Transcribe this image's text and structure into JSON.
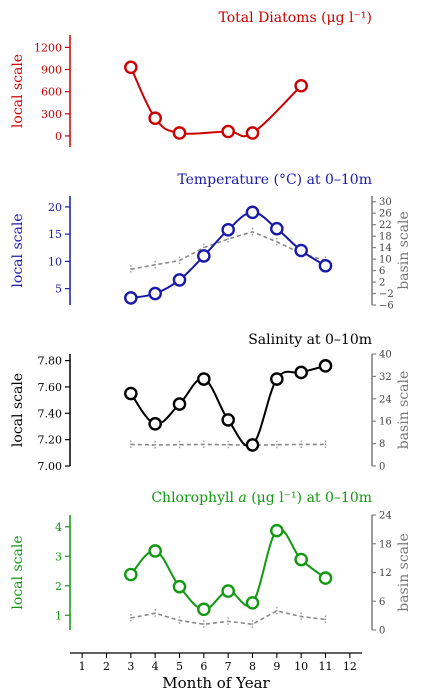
{
  "figure": {
    "xlabel": "Month of Year"
  },
  "shared_x": {
    "ticks": [
      1,
      2,
      3,
      4,
      5,
      6,
      7,
      8,
      9,
      10,
      11,
      12
    ],
    "xlim": [
      0.5,
      12.5
    ]
  },
  "chart_data": [
    {
      "type": "line",
      "title": "Total Diatoms (μg l⁻¹)",
      "ylabel": "local scale",
      "color": "#cc0000",
      "ylim": [
        -150,
        1300
      ],
      "yticks": [
        0,
        300,
        600,
        900,
        1200
      ],
      "ytick_labels": [
        "0",
        "300",
        "600",
        "900",
        "1200"
      ],
      "series": [
        {
          "x": [
            3,
            4,
            5,
            7,
            8,
            10
          ],
          "y": [
            930,
            240,
            40,
            60,
            40,
            680
          ]
        }
      ]
    },
    {
      "type": "line",
      "title": "Temperature (°C) at 0–10m",
      "ylabel": "local scale",
      "ylabel_right": "basin scale",
      "color": "#1a1aaa",
      "ylim": [
        2,
        22
      ],
      "yticks": [
        5,
        10,
        15,
        20
      ],
      "ytick_labels": [
        "5",
        "10",
        "15",
        "20"
      ],
      "ylim_right": [
        -6,
        32
      ],
      "yticks_right": [
        -6,
        -2,
        2,
        6,
        10,
        14,
        18,
        22,
        26,
        30
      ],
      "ytick_labels_right": [
        "−6",
        "−2",
        "2",
        "6",
        "10",
        "14",
        "18",
        "22",
        "26",
        "30"
      ],
      "series": [
        {
          "x": [
            3,
            4,
            5,
            6,
            7,
            8,
            9,
            10,
            11
          ],
          "y": [
            3.3,
            4.1,
            6.6,
            11.0,
            15.8,
            19.0,
            16.0,
            12.0,
            9.2
          ]
        }
      ],
      "basin_series": {
        "x": [
          3,
          4,
          5,
          6,
          7,
          8,
          9,
          10,
          11
        ],
        "y": [
          6.5,
          8.0,
          9.5,
          14.0,
          17.0,
          19.5,
          16.0,
          12.0,
          9.5
        ]
      }
    },
    {
      "type": "line",
      "title": "Salinity at 0–10m",
      "ylabel": "local scale",
      "ylabel_right": "basin scale",
      "color": "#000000",
      "ylim": [
        7.0,
        7.85
      ],
      "yticks": [
        7.0,
        7.2,
        7.4,
        7.6,
        7.8
      ],
      "ytick_labels": [
        "7.00",
        "7.20",
        "7.40",
        "7.60",
        "7.80"
      ],
      "ylim_right": [
        0,
        40
      ],
      "yticks_right": [
        0,
        8,
        16,
        24,
        32,
        40
      ],
      "ytick_labels_right": [
        "0",
        "8",
        "16",
        "24",
        "32",
        "40"
      ],
      "series": [
        {
          "x": [
            3,
            4,
            5,
            6,
            7,
            8,
            9,
            10,
            11
          ],
          "y": [
            7.55,
            7.32,
            7.47,
            7.66,
            7.35,
            7.16,
            7.66,
            7.71,
            7.76
          ]
        }
      ],
      "basin_series": {
        "x": [
          3,
          4,
          5,
          6,
          7,
          8,
          9,
          10,
          11
        ],
        "y": [
          7.7,
          7.5,
          7.6,
          7.7,
          7.6,
          7.4,
          7.6,
          7.7,
          7.7
        ]
      }
    },
    {
      "type": "line",
      "title": "Chlorophyll a (μg l⁻¹) at 0–10m",
      "title_parts": [
        "Chlorophyll ",
        "a",
        " (μg l⁻¹) at 0–10m"
      ],
      "ylabel": "local scale",
      "ylabel_right": "basin scale",
      "color": "#119911",
      "ylim": [
        0.5,
        4.4
      ],
      "yticks": [
        1,
        2,
        3,
        4
      ],
      "ytick_labels": [
        "1",
        "2",
        "3",
        "4"
      ],
      "ylim_right": [
        0,
        24
      ],
      "yticks_right": [
        0,
        6,
        12,
        18,
        24
      ],
      "ytick_labels_right": [
        "0",
        "6",
        "12",
        "18",
        "24"
      ],
      "series": [
        {
          "x": [
            3,
            4,
            5,
            6,
            7,
            8,
            9,
            10,
            11
          ],
          "y": [
            2.38,
            3.18,
            1.97,
            1.2,
            1.82,
            1.42,
            3.87,
            2.89,
            2.26
          ]
        }
      ],
      "basin_series": {
        "x": [
          3,
          4,
          5,
          6,
          7,
          8,
          9,
          10,
          11
        ],
        "y": [
          2.5,
          3.5,
          2.0,
          1.2,
          1.8,
          1.2,
          4.0,
          2.8,
          2.2
        ]
      }
    }
  ]
}
